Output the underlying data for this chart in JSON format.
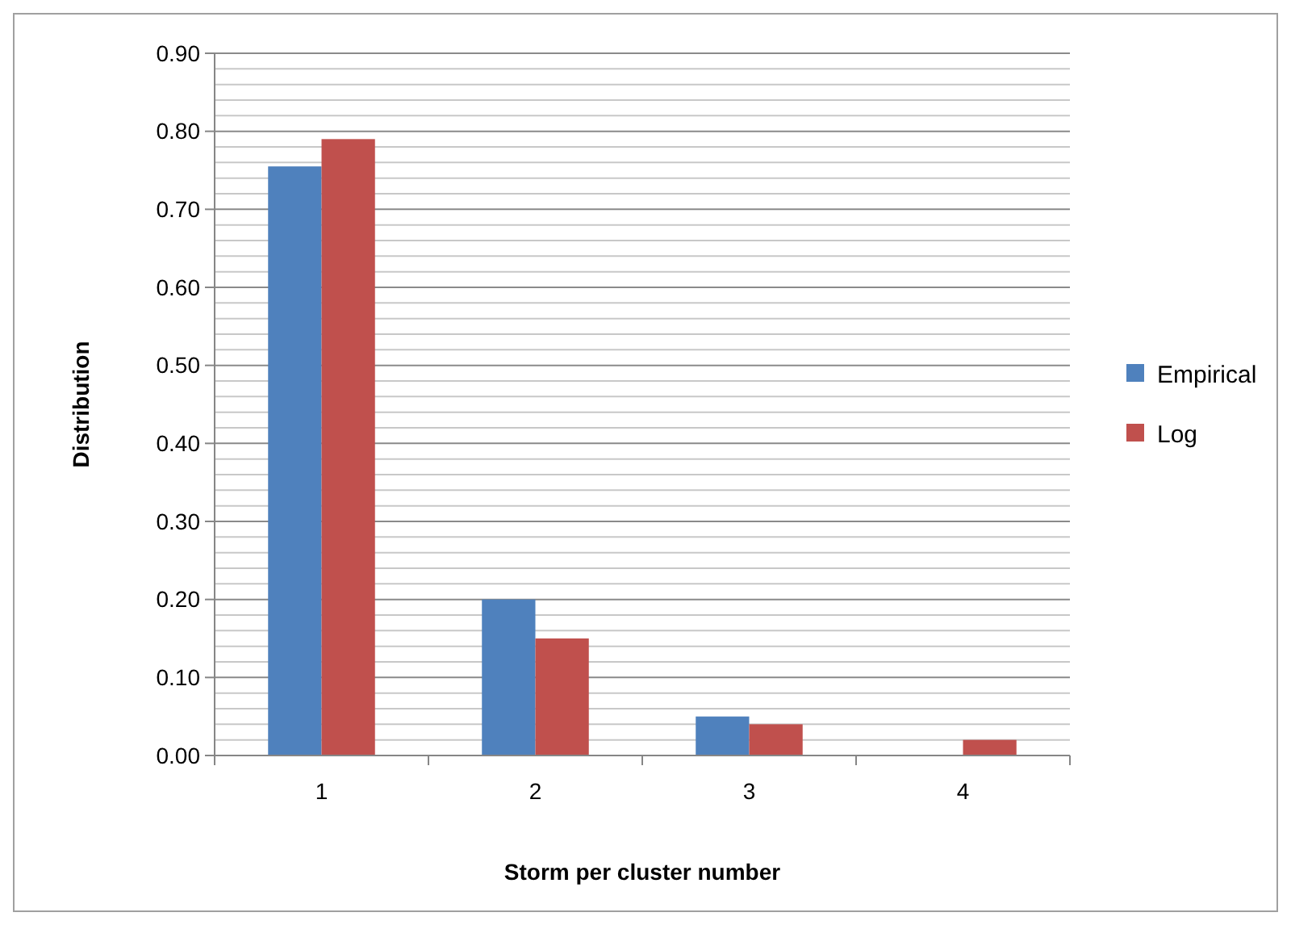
{
  "chart_data": {
    "type": "bar",
    "xlabel": "Storm per cluster number",
    "ylabel": "Distribution",
    "categories": [
      "1",
      "2",
      "3",
      "4"
    ],
    "series": [
      {
        "name": "Empirical",
        "color": "#4f81bd",
        "values": [
          0.755,
          0.2,
          0.05,
          0
        ]
      },
      {
        "name": "Log",
        "color": "#c0504d",
        "values": [
          0.79,
          0.15,
          0.04,
          0.02
        ]
      }
    ],
    "ylim": [
      0,
      0.9
    ],
    "yticks": [
      "0.00",
      {
        "value": 0.02,
        "label": null
      },
      {
        "value": 0.04,
        "label": null
      },
      {
        "value": 0.06,
        "label": null
      },
      {
        "value": 0.08,
        "label": null
      },
      {
        "value": 0.1,
        "label": "0.10"
      },
      {
        "value": 0.12,
        "label": null
      },
      {
        "value": 0.14,
        "label": null
      },
      {
        "value": 0.16,
        "label": null
      },
      {
        "value": 0.18,
        "label": null
      },
      {
        "value": 0.2,
        "label": "0.20"
      },
      {
        "value": 0.22,
        "label": null
      },
      {
        "value": 0.24,
        "label": null
      },
      {
        "value": 0.26,
        "label": null
      },
      {
        "value": 0.28,
        "label": null
      },
      {
        "value": 0.3,
        "label": "0.30"
      },
      {
        "value": 0.32,
        "label": null
      },
      {
        "value": 0.34,
        "label": null
      },
      {
        "value": 0.36,
        "label": null
      },
      {
        "value": 0.38,
        "label": null
      },
      {
        "value": 0.4,
        "label": "0.40"
      },
      {
        "value": 0.42,
        "label": null
      },
      {
        "value": 0.44,
        "label": null
      },
      {
        "value": 0.46,
        "label": null
      },
      {
        "value": 0.48,
        "label": null
      },
      {
        "value": 0.5,
        "label": "0.50"
      },
      {
        "value": 0.52,
        "label": null
      },
      {
        "value": 0.54,
        "label": null
      },
      {
        "value": 0.56,
        "label": null
      },
      {
        "value": 0.58,
        "label": null
      },
      {
        "value": 0.6,
        "label": "0.60"
      },
      {
        "value": 0.62,
        "label": null
      },
      {
        "value": 0.64,
        "label": null
      },
      {
        "value": 0.66,
        "label": null
      },
      {
        "value": 0.68,
        "label": null
      },
      {
        "value": 0.7,
        "label": "0.70"
      },
      {
        "value": 0.72,
        "label": null
      },
      {
        "value": 0.74,
        "label": null
      },
      {
        "value": 0.76,
        "label": null
      },
      {
        "value": 0.78,
        "label": null
      },
      {
        "value": 0.8,
        "label": "0.80"
      },
      {
        "value": 0.82,
        "label": null
      },
      {
        "value": 0.84,
        "label": null
      },
      {
        "value": 0.86,
        "label": null
      },
      {
        "value": 0.88,
        "label": null
      },
      {
        "value": 0.9,
        "label": "0.90"
      }
    ],
    "grid": "y",
    "legend": "right"
  }
}
